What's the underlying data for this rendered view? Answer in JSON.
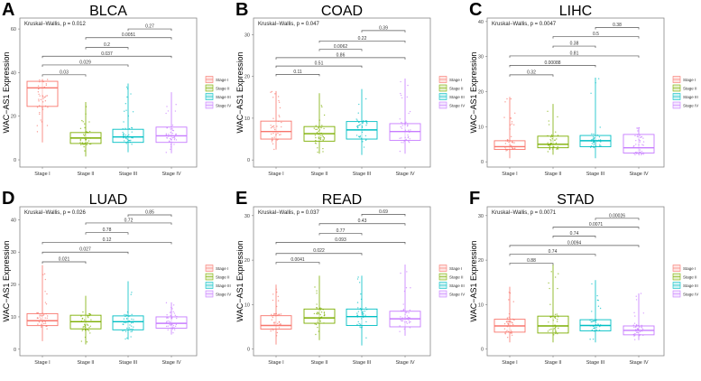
{
  "colors": {
    "Stage I": "#F8766D",
    "Stage II": "#7CAE00",
    "Stage III": "#00BFC4",
    "Stage IV": "#C77CFF"
  },
  "chart_data": [
    {
      "type": "box",
      "letter": "A",
      "title": "BLCA",
      "ylabel": "WAC−AS1 Expression",
      "test_label": "Kruskal−Wallis, p = 0.012",
      "categories": [
        "Stage I",
        "Stage II",
        "Stage III",
        "Stage IV"
      ],
      "ylim": [
        -3.3,
        65
      ],
      "yticks": [
        0,
        20,
        40,
        60
      ],
      "boxes": [
        {
          "q1": 24.5,
          "median": 33,
          "q3": 36,
          "low": 8,
          "high": 37
        },
        {
          "q1": 7.5,
          "median": 10,
          "q3": 12.5,
          "low": 1.5,
          "high": 26.5
        },
        {
          "q1": 8,
          "median": 10.5,
          "q3": 14,
          "low": 3.5,
          "high": 35
        },
        {
          "q1": 8,
          "median": 11,
          "q3": 15,
          "low": 3,
          "high": 31
        }
      ],
      "comparisons": [
        {
          "pair": [
            "Stage I",
            "Stage II"
          ],
          "p": "0.03",
          "y": 39
        },
        {
          "pair": [
            "Stage I",
            "Stage III"
          ],
          "p": "0.029",
          "y": 43.5
        },
        {
          "pair": [
            "Stage I",
            "Stage IV"
          ],
          "p": "0.037",
          "y": 47.5
        },
        {
          "pair": [
            "Stage II",
            "Stage III"
          ],
          "p": "0.2",
          "y": 51.5
        },
        {
          "pair": [
            "Stage II",
            "Stage IV"
          ],
          "p": "0.0051",
          "y": 56
        },
        {
          "pair": [
            "Stage III",
            "Stage IV"
          ],
          "p": "0.27",
          "y": 60
        }
      ],
      "legend": [
        "Stage I",
        "Stage II",
        "Stage III",
        "Stage IV"
      ]
    },
    {
      "type": "box",
      "letter": "B",
      "title": "COAD",
      "ylabel": "WAC−AS1 Expression",
      "test_label": "Kruskal−Wallis, p = 0.047",
      "categories": [
        "Stage I",
        "Stage II",
        "Stage III",
        "Stage IV"
      ],
      "ylim": [
        -1.7,
        34
      ],
      "yticks": [
        0,
        10,
        20,
        30
      ],
      "boxes": [
        {
          "q1": 5,
          "median": 6.8,
          "q3": 9.3,
          "low": 2.5,
          "high": 16.5
        },
        {
          "q1": 4.5,
          "median": 6.3,
          "q3": 8,
          "low": 1.5,
          "high": 16
        },
        {
          "q1": 5,
          "median": 7.2,
          "q3": 9.2,
          "low": 1.2,
          "high": 17
        },
        {
          "q1": 4.7,
          "median": 6.8,
          "q3": 8.7,
          "low": 1.5,
          "high": 19.5
        }
      ],
      "comparisons": [
        {
          "pair": [
            "Stage I",
            "Stage II"
          ],
          "p": "0.11",
          "y": 20.5
        },
        {
          "pair": [
            "Stage I",
            "Stage III"
          ],
          "p": "0.51",
          "y": 22.5
        },
        {
          "pair": [
            "Stage I",
            "Stage IV"
          ],
          "p": "0.86",
          "y": 24.5
        },
        {
          "pair": [
            "Stage II",
            "Stage III"
          ],
          "p": "0.0062",
          "y": 26.5
        },
        {
          "pair": [
            "Stage II",
            "Stage IV"
          ],
          "p": "0.22",
          "y": 28.5
        },
        {
          "pair": [
            "Stage III",
            "Stage IV"
          ],
          "p": "0.39",
          "y": 31
        }
      ],
      "legend": [
        "Stage I",
        "Stage II",
        "Stage III",
        "Stage IV"
      ]
    },
    {
      "type": "box",
      "letter": "C",
      "title": "LIHC",
      "ylabel": "WAC−AS1 Expression",
      "test_label": "Kruskal−Wallis, p = 0.0047",
      "categories": [
        "Stage I",
        "Stage II",
        "Stage III",
        "Stage IV"
      ],
      "ylim": [
        -1.5,
        41
      ],
      "yticks": [
        0,
        10,
        20,
        30,
        40
      ],
      "boxes": [
        {
          "q1": 3.5,
          "median": 4.3,
          "q3": 6,
          "low": 1,
          "high": 18.5
        },
        {
          "q1": 4,
          "median": 5,
          "q3": 7.3,
          "low": 2,
          "high": 16.5
        },
        {
          "q1": 4.3,
          "median": 6,
          "q3": 7.5,
          "low": 1,
          "high": 24
        },
        {
          "q1": 2.5,
          "median": 4,
          "q3": 7.8,
          "low": 2,
          "high": 9.8
        }
      ],
      "comparisons": [
        {
          "pair": [
            "Stage I",
            "Stage II"
          ],
          "p": "0.32",
          "y": 24.8
        },
        {
          "pair": [
            "Stage I",
            "Stage III"
          ],
          "p": "0.00088",
          "y": 27.5
        },
        {
          "pair": [
            "Stage I",
            "Stage IV"
          ],
          "p": "0.81",
          "y": 30.2
        },
        {
          "pair": [
            "Stage II",
            "Stage III"
          ],
          "p": "0.38",
          "y": 33
        },
        {
          "pair": [
            "Stage II",
            "Stage IV"
          ],
          "p": "0.5",
          "y": 35.7
        },
        {
          "pair": [
            "Stage III",
            "Stage IV"
          ],
          "p": "0.38",
          "y": 38.3
        }
      ],
      "legend": [
        "Stage I",
        "Stage II",
        "Stage III",
        "Stage IV"
      ]
    },
    {
      "type": "box",
      "letter": "D",
      "title": "LUAD",
      "ylabel": "WAC−AS1 Expression",
      "test_label": "Kruskal−Wallis, p = 0.026",
      "categories": [
        "Stage I",
        "Stage II",
        "Stage III",
        "Stage IV"
      ],
      "ylim": [
        -2,
        44
      ],
      "yticks": [
        0,
        10,
        20,
        30,
        40
      ],
      "boxes": [
        {
          "q1": 7.3,
          "median": 8.8,
          "q3": 11,
          "low": 2.5,
          "high": 26
        },
        {
          "q1": 6.3,
          "median": 8.5,
          "q3": 10.5,
          "low": 1.5,
          "high": 16.5
        },
        {
          "q1": 6,
          "median": 8.5,
          "q3": 10.3,
          "low": 3,
          "high": 21
        },
        {
          "q1": 6.5,
          "median": 8,
          "q3": 10,
          "low": 4.5,
          "high": 14.5
        }
      ],
      "comparisons": [
        {
          "pair": [
            "Stage I",
            "Stage II"
          ],
          "p": "0.021",
          "y": 27
        },
        {
          "pair": [
            "Stage I",
            "Stage III"
          ],
          "p": "0.027",
          "y": 30
        },
        {
          "pair": [
            "Stage I",
            "Stage IV"
          ],
          "p": "0.12",
          "y": 33
        },
        {
          "pair": [
            "Stage II",
            "Stage III"
          ],
          "p": "0.78",
          "y": 36
        },
        {
          "pair": [
            "Stage II",
            "Stage IV"
          ],
          "p": "0.72",
          "y": 39
        },
        {
          "pair": [
            "Stage III",
            "Stage IV"
          ],
          "p": "0.85",
          "y": 41.5
        }
      ],
      "legend": [
        "Stage I",
        "Stage II",
        "Stage III",
        "Stage IV"
      ]
    },
    {
      "type": "box",
      "letter": "E",
      "title": "READ",
      "ylabel": "WAC−AS1 Expression",
      "test_label": "Kruskal−Wallis, p = 0.037",
      "categories": [
        "Stage I",
        "Stage II",
        "Stage III",
        "Stage IV"
      ],
      "ylim": [
        -1.5,
        32
      ],
      "yticks": [
        0,
        10,
        20,
        30
      ],
      "boxes": [
        {
          "q1": 4.5,
          "median": 5.3,
          "q3": 7.5,
          "low": 1,
          "high": 14.5
        },
        {
          "q1": 5.8,
          "median": 7,
          "q3": 9,
          "low": 2,
          "high": 16.5
        },
        {
          "q1": 5.3,
          "median": 7.3,
          "q3": 9,
          "low": 0.8,
          "high": 16.5
        },
        {
          "q1": 5,
          "median": 6.8,
          "q3": 8.5,
          "low": 3,
          "high": 19
        }
      ],
      "comparisons": [
        {
          "pair": [
            "Stage I",
            "Stage II"
          ],
          "p": "0.0041",
          "y": 19.5
        },
        {
          "pair": [
            "Stage I",
            "Stage III"
          ],
          "p": "0.022",
          "y": 21.5
        },
        {
          "pair": [
            "Stage I",
            "Stage IV"
          ],
          "p": "0.093",
          "y": 24
        },
        {
          "pair": [
            "Stage II",
            "Stage III"
          ],
          "p": "0.77",
          "y": 26
        },
        {
          "pair": [
            "Stage II",
            "Stage IV"
          ],
          "p": "0.43",
          "y": 28.2
        },
        {
          "pair": [
            "Stage III",
            "Stage IV"
          ],
          "p": "0.69",
          "y": 30.3
        }
      ],
      "legend": [
        "Stage I",
        "Stage II",
        "Stage III",
        "Stage IV"
      ]
    },
    {
      "type": "box",
      "letter": "F",
      "title": "STAD",
      "ylabel": "WAC−AS1 Expression",
      "test_label": "Kruskal−Wallis, p = 0.0071",
      "categories": [
        "Stage I",
        "Stage II",
        "Stage III",
        "Stage IV"
      ],
      "ylim": [
        -1.5,
        32
      ],
      "yticks": [
        0,
        10,
        20,
        30
      ],
      "boxes": [
        {
          "q1": 3.8,
          "median": 5.2,
          "q3": 6.7,
          "low": 1.5,
          "high": 14
        },
        {
          "q1": 3.6,
          "median": 5.2,
          "q3": 7.4,
          "low": 1.5,
          "high": 19
        },
        {
          "q1": 4.1,
          "median": 5.3,
          "q3": 6.6,
          "low": 1.5,
          "high": 15.5
        },
        {
          "q1": 3.2,
          "median": 4.2,
          "q3": 5.2,
          "low": 2,
          "high": 12.5
        }
      ],
      "comparisons": [
        {
          "pair": [
            "Stage I",
            "Stage II"
          ],
          "p": "0.88",
          "y": 19.3
        },
        {
          "pair": [
            "Stage I",
            "Stage III"
          ],
          "p": "0.74",
          "y": 21.3
        },
        {
          "pair": [
            "Stage I",
            "Stage IV"
          ],
          "p": "0.0094",
          "y": 23.3
        },
        {
          "pair": [
            "Stage II",
            "Stage III"
          ],
          "p": "0.74",
          "y": 25.4
        },
        {
          "pair": [
            "Stage II",
            "Stage IV"
          ],
          "p": "0.0071",
          "y": 27.4
        },
        {
          "pair": [
            "Stage III",
            "Stage IV"
          ],
          "p": "0.00026",
          "y": 29.4
        }
      ],
      "legend": [
        "Stage I",
        "Stage II",
        "Stage III",
        "Stage IV"
      ]
    }
  ]
}
